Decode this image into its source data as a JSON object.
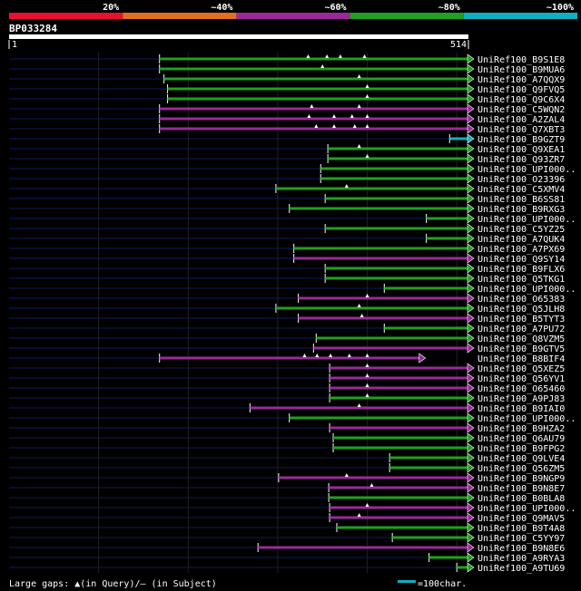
{
  "chart_data": {
    "type": "alignment-overview",
    "query_id": "BP033284",
    "query_length": 514,
    "axis_start_label": "1",
    "axis_end_label": "514",
    "identity_scale": [
      {
        "label": "20%",
        "color": "#e8102c"
      },
      {
        "label": "~40%",
        "color": "#e07020"
      },
      {
        "label": "~60%",
        "color": "#9a2a9a"
      },
      {
        "label": "~80%",
        "color": "#20a020"
      },
      {
        "label": "~100%",
        "color": "#10b0c0"
      }
    ],
    "legend": {
      "gaps_text": "Large gaps: ▲(in Query)/– (in Subject)",
      "scale_text": "=100char.",
      "scale_chars": 100,
      "scale_color": "#10b0c0"
    },
    "hits": [
      {
        "name": "UniRef100_B9S1E8",
        "start": 169,
        "end": 514,
        "identity": "~80%",
        "gaps": [
          335,
          356,
          371,
          398
        ]
      },
      {
        "name": "UniRef100_B9MUA6",
        "start": 169,
        "end": 514,
        "identity": "~80%",
        "gaps": [
          351
        ]
      },
      {
        "name": "UniRef100_A7QQX9",
        "start": 174,
        "end": 514,
        "identity": "~80%",
        "gaps": [
          392
        ]
      },
      {
        "name": "UniRef100_Q9FVQ5",
        "start": 178,
        "end": 514,
        "identity": "~80%",
        "gaps": [
          401
        ]
      },
      {
        "name": "UniRef100_Q9C6X4",
        "start": 178,
        "end": 514,
        "identity": "~80%",
        "gaps": [
          401
        ]
      },
      {
        "name": "UniRef100_C5WQN2",
        "start": 169,
        "end": 514,
        "identity": "~60%",
        "gaps": [
          339,
          392
        ]
      },
      {
        "name": "UniRef100_A2ZAL4",
        "start": 169,
        "end": 514,
        "identity": "~60%",
        "gaps": [
          336,
          364,
          384,
          401
        ]
      },
      {
        "name": "UniRef100_Q7XBT3",
        "start": 169,
        "end": 514,
        "identity": "~60%",
        "gaps": [
          344,
          364,
          387,
          401
        ]
      },
      {
        "name": "UniRef100_B9GZT9",
        "start": 493,
        "end": 514,
        "identity": "~100%",
        "gaps": []
      },
      {
        "name": "UniRef100_Q9XEA1",
        "start": 357,
        "end": 514,
        "identity": "~80%",
        "gaps": [
          392
        ]
      },
      {
        "name": "UniRef100_Q93ZR7",
        "start": 357,
        "end": 514,
        "identity": "~80%",
        "gaps": [
          401
        ]
      },
      {
        "name": "UniRef100_UPI000..",
        "start": 349,
        "end": 514,
        "identity": "~80%",
        "gaps": []
      },
      {
        "name": "UniRef100_O23396",
        "start": 349,
        "end": 514,
        "identity": "~80%",
        "gaps": []
      },
      {
        "name": "UniRef100_C5XMV4",
        "start": 299,
        "end": 514,
        "identity": "~80%",
        "gaps": [
          378
        ]
      },
      {
        "name": "UniRef100_B6SS81",
        "start": 354,
        "end": 514,
        "identity": "~80%",
        "gaps": []
      },
      {
        "name": "UniRef100_B9RXG3",
        "start": 314,
        "end": 514,
        "identity": "~80%",
        "gaps": []
      },
      {
        "name": "UniRef100_UPI000..",
        "start": 467,
        "end": 514,
        "identity": "~80%",
        "gaps": []
      },
      {
        "name": "UniRef100_C5YZ25",
        "start": 354,
        "end": 514,
        "identity": "~80%",
        "gaps": []
      },
      {
        "name": "UniRef100_A7QUK4",
        "start": 467,
        "end": 514,
        "identity": "~80%",
        "gaps": []
      },
      {
        "name": "UniRef100_A7PX69",
        "start": 319,
        "end": 514,
        "identity": "~80%",
        "gaps": []
      },
      {
        "name": "UniRef100_Q9SY14",
        "start": 319,
        "end": 514,
        "identity": "~60%",
        "gaps": []
      },
      {
        "name": "UniRef100_B9FLX6",
        "start": 354,
        "end": 514,
        "identity": "~80%",
        "gaps": []
      },
      {
        "name": "UniRef100_Q5TKG1",
        "start": 354,
        "end": 514,
        "identity": "~80%",
        "gaps": []
      },
      {
        "name": "UniRef100_UPI000..",
        "start": 420,
        "end": 514,
        "identity": "~80%",
        "gaps": []
      },
      {
        "name": "UniRef100_O65383",
        "start": 324,
        "end": 514,
        "identity": "~60%",
        "gaps": [
          401
        ]
      },
      {
        "name": "UniRef100_Q5JLH8",
        "start": 299,
        "end": 514,
        "identity": "~80%",
        "gaps": [
          392
        ]
      },
      {
        "name": "UniRef100_B5TYT3",
        "start": 324,
        "end": 514,
        "identity": "~60%",
        "gaps": [
          395
        ]
      },
      {
        "name": "UniRef100_A7PU72",
        "start": 420,
        "end": 514,
        "identity": "~80%",
        "gaps": []
      },
      {
        "name": "UniRef100_Q8VZM5",
        "start": 344,
        "end": 514,
        "identity": "~80%",
        "gaps": []
      },
      {
        "name": "UniRef100_B9GTV5",
        "start": 341,
        "end": 514,
        "identity": "~60%",
        "gaps": []
      },
      {
        "name": "UniRef100_B8BIF4",
        "start": 169,
        "end": 460,
        "identity": "~60%",
        "gaps": [
          331,
          345,
          360,
          381,
          401
        ]
      },
      {
        "name": "UniRef100_Q5XEZ5",
        "start": 359,
        "end": 514,
        "identity": "~60%",
        "gaps": [
          401
        ]
      },
      {
        "name": "UniRef100_Q56YV1",
        "start": 359,
        "end": 514,
        "identity": "~60%",
        "gaps": [
          401
        ]
      },
      {
        "name": "UniRef100_O65460",
        "start": 359,
        "end": 514,
        "identity": "~60%",
        "gaps": [
          401
        ]
      },
      {
        "name": "UniRef100_A9PJ83",
        "start": 359,
        "end": 514,
        "identity": "~80%",
        "gaps": [
          401
        ]
      },
      {
        "name": "UniRef100_B9IAI0",
        "start": 270,
        "end": 514,
        "identity": "~60%",
        "gaps": [
          392
        ]
      },
      {
        "name": "UniRef100_UPI000..",
        "start": 314,
        "end": 514,
        "identity": "~80%",
        "gaps": []
      },
      {
        "name": "UniRef100_B9HZA2",
        "start": 359,
        "end": 514,
        "identity": "~60%",
        "gaps": []
      },
      {
        "name": "UniRef100_Q6AU79",
        "start": 363,
        "end": 514,
        "identity": "~80%",
        "gaps": []
      },
      {
        "name": "UniRef100_B9FPG2",
        "start": 363,
        "end": 514,
        "identity": "~80%",
        "gaps": []
      },
      {
        "name": "UniRef100_Q9LVE4",
        "start": 426,
        "end": 514,
        "identity": "~80%",
        "gaps": []
      },
      {
        "name": "UniRef100_Q56ZM5",
        "start": 426,
        "end": 514,
        "identity": "~80%",
        "gaps": []
      },
      {
        "name": "UniRef100_B9NGP9",
        "start": 302,
        "end": 514,
        "identity": "~60%",
        "gaps": [
          378
        ]
      },
      {
        "name": "UniRef100_B9N8E7",
        "start": 358,
        "end": 514,
        "identity": "~60%",
        "gaps": [
          406
        ]
      },
      {
        "name": "UniRef100_B0BLA8",
        "start": 358,
        "end": 514,
        "identity": "~80%",
        "gaps": []
      },
      {
        "name": "UniRef100_UPI000..",
        "start": 359,
        "end": 514,
        "identity": "~60%",
        "gaps": [
          401
        ]
      },
      {
        "name": "UniRef100_Q9MAV5",
        "start": 359,
        "end": 514,
        "identity": "~60%",
        "gaps": [
          392
        ]
      },
      {
        "name": "UniRef100_B9T4A8",
        "start": 367,
        "end": 514,
        "identity": "~80%",
        "gaps": []
      },
      {
        "name": "UniRef100_C5YY97",
        "start": 429,
        "end": 514,
        "identity": "~80%",
        "gaps": []
      },
      {
        "name": "UniRef100_B9N8E6",
        "start": 279,
        "end": 514,
        "identity": "~60%",
        "gaps": []
      },
      {
        "name": "UniRef100_A9RYA3",
        "start": 470,
        "end": 514,
        "identity": "~80%",
        "gaps": []
      },
      {
        "name": "UniRef100_A9TU69",
        "start": 501,
        "end": 514,
        "identity": "~80%",
        "gaps": []
      }
    ]
  }
}
